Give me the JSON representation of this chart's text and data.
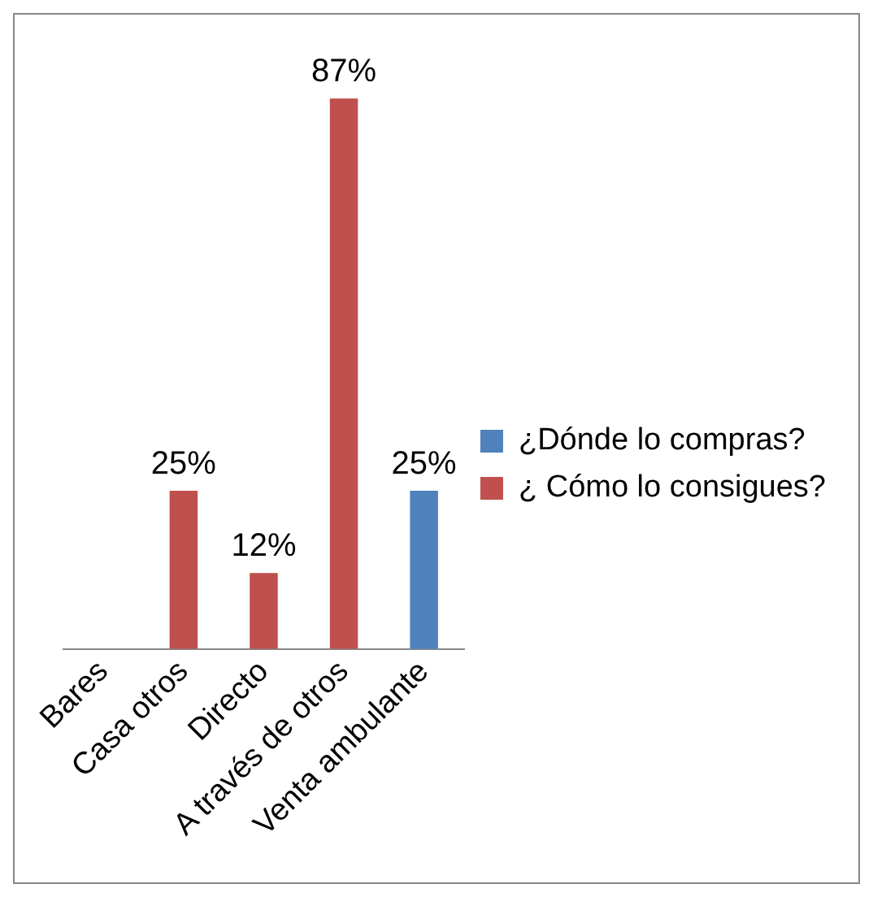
{
  "chart_data": {
    "type": "bar",
    "categories": [
      "Bares",
      "Casa otros",
      "Directo",
      "A través de otros",
      "Venta ambulante"
    ],
    "series": [
      {
        "name": "¿Dónde lo compras?",
        "color": "#4f81bd",
        "values": [
          null,
          null,
          null,
          null,
          25
        ],
        "value_labels": [
          null,
          null,
          null,
          null,
          "25%"
        ]
      },
      {
        "name": "¿ Cómo lo consigues?",
        "color": "#c0504d",
        "values": [
          null,
          25,
          12,
          87,
          null
        ],
        "value_labels": [
          null,
          "25%",
          "12%",
          "87%",
          null
        ]
      }
    ],
    "legend": "right",
    "grid": false
  }
}
